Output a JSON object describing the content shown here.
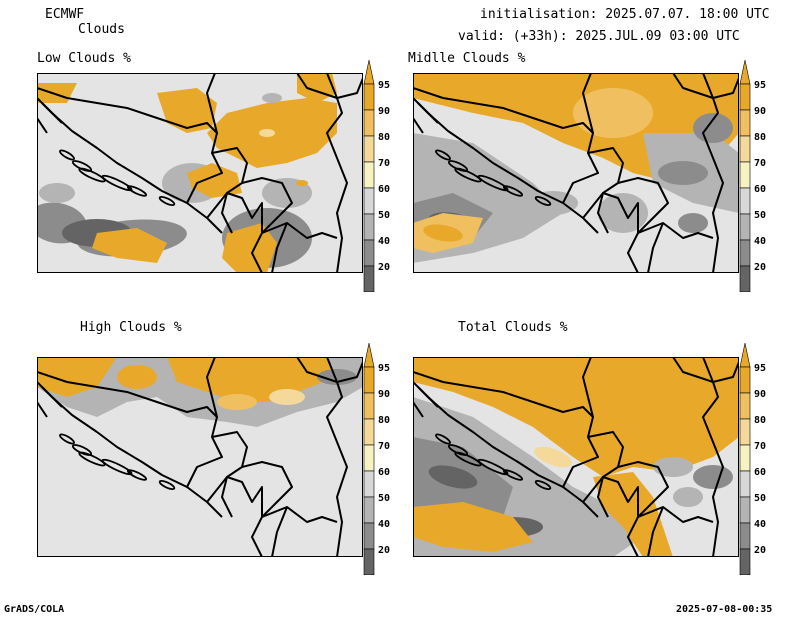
{
  "header": {
    "model": "ECMWF",
    "product": "Clouds",
    "init": "initialisation: 2025.07.07. 18:00 UTC",
    "valid": "valid: (+33h): 2025.JUL.09 03:00 UTC"
  },
  "panels": [
    {
      "title": "Low Clouds %"
    },
    {
      "title": "Midlle Clouds %"
    },
    {
      "title": "High Clouds %"
    },
    {
      "title": "Total Clouds %"
    }
  ],
  "colorbar": {
    "labels": [
      "95",
      "90",
      "80",
      "70",
      "60",
      "50",
      "40",
      "20"
    ],
    "colors": [
      "#e8a92b",
      "#f0c060",
      "#f4d99a",
      "#f6f2c2",
      "#d8d8d8",
      "#b4b4b4",
      "#8c8c8c",
      "#646464"
    ]
  },
  "footer": {
    "left": "GrADS/COLA",
    "right": "2025-07-08-00:35"
  }
}
